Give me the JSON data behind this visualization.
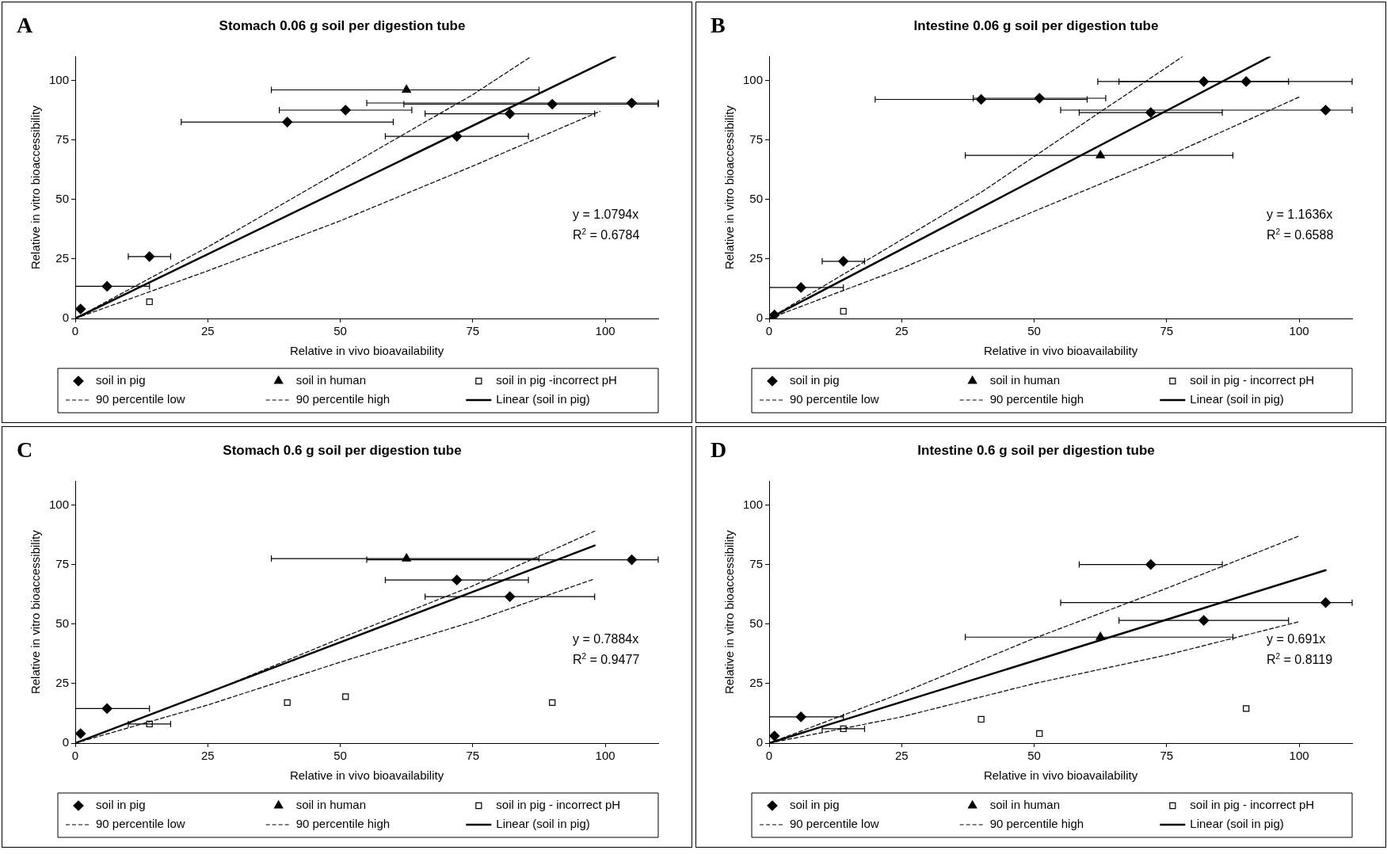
{
  "chart_data": [
    {
      "type": "scatter",
      "title": "Stomach 0.06 g soil per digestion tube",
      "xlabel": "Relative in vivo bioavailability",
      "ylabel": "Relative in vitro bioaccessibility",
      "xlim": [
        0,
        110
      ],
      "ylim": [
        0,
        110
      ],
      "xticks": [
        0,
        25,
        50,
        75,
        100
      ],
      "yticks": [
        0,
        25,
        50,
        75,
        100
      ],
      "legend": "bottom",
      "annotations": [
        "A",
        "y = 1.0794x",
        "R$^{2}$ = 0.6784"
      ],
      "series": [
        {
          "name": "soil in pig",
          "type": "scatter",
          "marker": "diamond",
          "color": "#000000",
          "x": [
            1,
            6,
            14,
            40,
            51,
            72,
            82,
            90,
            105
          ],
          "values": [
            4,
            13.5,
            26,
            82.5,
            87.5,
            76.5,
            86,
            90,
            90.5
          ],
          "xerrors": [
            null,
            [
              0,
              14
            ],
            [
              10,
              18
            ],
            [
              20,
              60
            ],
            [
              38.5,
              63.5
            ],
            [
              58.5,
              85.5
            ],
            [
              66,
              98
            ],
            [
              62,
              110
            ],
            [
              55,
              110
            ]
          ]
        },
        {
          "name": "soil in human",
          "type": "scatter",
          "marker": "triangle",
          "color": "#000000",
          "x": [
            62.5
          ],
          "values": [
            96
          ],
          "xerrors": [
            [
              37,
              87.5
            ]
          ]
        },
        {
          "name": "soil in pig -incorrect pH",
          "type": "scatter",
          "marker": "square",
          "color": "#000000",
          "x": [
            14
          ],
          "values": [
            7
          ]
        },
        {
          "name": "90 percentile low",
          "type": "line",
          "marker": "none",
          "line_style": "dashed",
          "color": "#000000",
          "x": [
            0,
            25,
            50,
            75,
            99
          ],
          "values": [
            0,
            20,
            41,
            64,
            87
          ]
        },
        {
          "name": "90 percentile high",
          "type": "line",
          "marker": "none",
          "line_style": "dashed",
          "color": "#000000",
          "x": [
            0,
            25,
            50,
            75,
            86
          ],
          "values": [
            0,
            30,
            62,
            94,
            110
          ]
        },
        {
          "name": "Linear (soil in pig)",
          "type": "line",
          "marker": "none",
          "line_style": "solid",
          "color": "#000000",
          "x": [
            0,
            101.9
          ],
          "values": [
            0,
            110
          ]
        }
      ]
    },
    {
      "type": "scatter",
      "title": "Intestine 0.06 g soil per digestion tube",
      "xlabel": "Relative in vivo bioavailability",
      "ylabel": "Relative in vitro bioaccessibility",
      "xlim": [
        0,
        110
      ],
      "ylim": [
        0,
        110
      ],
      "xticks": [
        0,
        25,
        50,
        75,
        100
      ],
      "yticks": [
        0,
        25,
        50,
        75,
        100
      ],
      "legend": "bottom",
      "annotations": [
        "B",
        "y = 1.1636x",
        "R$^{2}$ = 0.6588"
      ],
      "series": [
        {
          "name": "soil in pig",
          "type": "scatter",
          "marker": "diamond",
          "color": "#000000",
          "x": [
            1,
            6,
            14,
            40,
            51,
            72,
            82,
            90,
            105
          ],
          "values": [
            1.5,
            13,
            24,
            92,
            92.5,
            86.5,
            99.5,
            99.5,
            87.5
          ],
          "xerrors": [
            null,
            [
              0,
              14
            ],
            [
              10,
              18
            ],
            [
              20,
              60
            ],
            [
              38.5,
              63.5
            ],
            [
              58.5,
              85.5
            ],
            [
              66,
              98
            ],
            [
              62,
              110
            ],
            [
              55,
              110
            ]
          ]
        },
        {
          "name": "soil in human",
          "type": "scatter",
          "marker": "triangle",
          "color": "#000000",
          "x": [
            62.5
          ],
          "values": [
            68.5
          ],
          "xerrors": [
            [
              37,
              87.5
            ]
          ]
        },
        {
          "name": "soil in pig - incorrect pH",
          "type": "scatter",
          "marker": "square",
          "color": "#000000",
          "x": [
            14
          ],
          "values": [
            3
          ]
        },
        {
          "name": "90 percentile low",
          "type": "line",
          "marker": "none",
          "line_style": "dashed",
          "color": "#000000",
          "x": [
            0,
            25,
            50,
            75,
            100
          ],
          "values": [
            0,
            21,
            45,
            68,
            93
          ]
        },
        {
          "name": "90 percentile high",
          "type": "line",
          "marker": "none",
          "line_style": "dashed",
          "color": "#000000",
          "x": [
            0,
            40,
            78
          ],
          "values": [
            0,
            53,
            110
          ]
        },
        {
          "name": "Linear (soil in pig)",
          "type": "line",
          "marker": "none",
          "line_style": "solid",
          "color": "#000000",
          "x": [
            0,
            94.5
          ],
          "values": [
            0,
            110
          ]
        }
      ]
    },
    {
      "type": "scatter",
      "title": "Stomach 0.6 g soil per digestion tube",
      "xlabel": "Relative in vivo bioavailability",
      "ylabel": "Relative in vitro bioaccessibility",
      "xlim": [
        0,
        110
      ],
      "ylim": [
        0,
        110
      ],
      "xticks": [
        0,
        25,
        50,
        75,
        100
      ],
      "yticks": [
        0,
        25,
        50,
        75,
        100
      ],
      "legend": "bottom",
      "annotations": [
        "C",
        "y = 0.7884x",
        "R$^{2}$ = 0.9477"
      ],
      "series": [
        {
          "name": "soil in pig",
          "type": "scatter",
          "marker": "diamond",
          "color": "#000000",
          "x": [
            1,
            6,
            72,
            82,
            105
          ],
          "values": [
            4,
            14.5,
            68.5,
            61.5,
            77
          ],
          "xerrors": [
            null,
            [
              0,
              14
            ],
            [
              58.5,
              85.5
            ],
            [
              66,
              98
            ],
            [
              55,
              110
            ]
          ]
        },
        {
          "name": "soil in human",
          "type": "scatter",
          "marker": "triangle",
          "color": "#000000",
          "x": [
            62.5
          ],
          "values": [
            77.5
          ],
          "xerrors": [
            [
              37,
              87.5
            ]
          ]
        },
        {
          "name": "soil in pig - incorrect pH",
          "type": "scatter",
          "marker": "square",
          "color": "#000000",
          "x": [
            14,
            40,
            51,
            90
          ],
          "values": [
            8,
            17,
            19.5,
            17
          ],
          "xerrors": [
            [
              10,
              18
            ],
            null,
            null,
            null
          ]
        },
        {
          "name": "90 percentile low",
          "type": "line",
          "marker": "none",
          "line_style": "dashed",
          "color": "#000000",
          "x": [
            0,
            25,
            50,
            75,
            98
          ],
          "values": [
            0,
            16,
            34,
            51,
            69
          ]
        },
        {
          "name": "90 percentile high",
          "type": "line",
          "marker": "none",
          "line_style": "dashed",
          "color": "#000000",
          "x": [
            0,
            25,
            50,
            75,
            98
          ],
          "values": [
            0,
            21,
            44,
            66,
            89
          ]
        },
        {
          "name": "Linear (soil in pig)",
          "type": "line",
          "marker": "none",
          "line_style": "solid",
          "color": "#000000",
          "x": [
            0,
            98
          ],
          "values": [
            0,
            83
          ]
        }
      ]
    },
    {
      "type": "scatter",
      "title": "Intestine 0.6 g soil per digestion tube",
      "xlabel": "Relative in vivo bioavailability",
      "ylabel": "Relative in vitro bioaccessibility",
      "xlim": [
        0,
        110
      ],
      "ylim": [
        0,
        110
      ],
      "xticks": [
        0,
        25,
        50,
        75,
        100
      ],
      "yticks": [
        0,
        25,
        50,
        75,
        100
      ],
      "legend": "bottom",
      "annotations": [
        "D",
        "y = 0.691x",
        "R$^{2}$ = 0.8119"
      ],
      "series": [
        {
          "name": "soil in pig",
          "type": "scatter",
          "marker": "diamond",
          "color": "#000000",
          "x": [
            1,
            6,
            72,
            82,
            105
          ],
          "values": [
            3,
            11,
            75,
            51.5,
            59
          ],
          "xerrors": [
            null,
            [
              0,
              14
            ],
            [
              58.5,
              85.5
            ],
            [
              66,
              98
            ],
            [
              55,
              110
            ]
          ]
        },
        {
          "name": "soil in human",
          "type": "scatter",
          "marker": "triangle",
          "color": "#000000",
          "x": [
            62.5
          ],
          "values": [
            44.5
          ],
          "xerrors": [
            [
              37,
              87.5
            ]
          ]
        },
        {
          "name": "soil in pig - incorrect pH",
          "type": "scatter",
          "marker": "square",
          "color": "#000000",
          "x": [
            14,
            40,
            51,
            90
          ],
          "values": [
            6,
            10,
            4,
            14.5
          ],
          "xerrors": [
            [
              10,
              18
            ],
            null,
            null,
            null
          ]
        },
        {
          "name": "90 percentile low",
          "type": "line",
          "marker": "none",
          "line_style": "dashed",
          "color": "#000000",
          "x": [
            0,
            25,
            50,
            75,
            100
          ],
          "values": [
            0,
            11,
            25,
            37,
            51
          ]
        },
        {
          "name": "90 percentile high",
          "type": "line",
          "marker": "none",
          "line_style": "dashed",
          "color": "#000000",
          "x": [
            0,
            25,
            50,
            75,
            100
          ],
          "values": [
            0,
            21,
            44,
            65,
            87
          ]
        },
        {
          "name": "Linear (soil in pig)",
          "type": "line",
          "marker": "none",
          "line_style": "solid",
          "color": "#000000",
          "x": [
            0,
            105
          ],
          "values": [
            0,
            72.6
          ]
        }
      ]
    }
  ]
}
